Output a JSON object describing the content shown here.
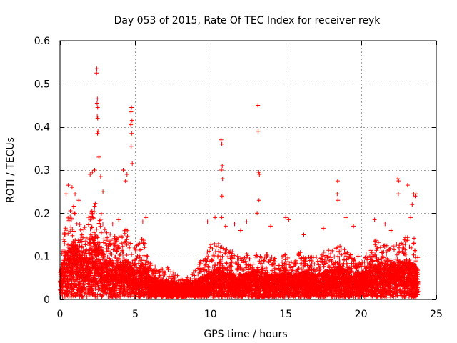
{
  "chart_data": {
    "type": "scatter",
    "title": "Day 053 of 2015, Rate Of TEC Index for receiver reyk",
    "xlabel": "GPS time / hours",
    "ylabel": "ROTI / TECUs",
    "xlim": [
      0,
      25
    ],
    "ylim": [
      0,
      0.6
    ],
    "x_ticks": [
      0,
      5,
      10,
      15,
      20,
      25
    ],
    "y_ticks": [
      0,
      0.1,
      0.2,
      0.3,
      0.4,
      0.5,
      0.6
    ],
    "x_tick_labels": [
      "0",
      "5",
      "10",
      "15",
      "20",
      "25"
    ],
    "y_tick_labels": [
      "0",
      "0.1",
      "0.2",
      "0.3",
      "0.4",
      "0.5",
      "0.6"
    ],
    "grid": true,
    "marker": "+",
    "marker_color": "#ff0000",
    "series": [
      {
        "name": "ROTI",
        "points": [
          [
            2.45,
            0.535
          ],
          [
            2.43,
            0.525
          ],
          [
            2.48,
            0.465
          ],
          [
            2.46,
            0.455
          ],
          [
            2.5,
            0.445
          ],
          [
            2.47,
            0.425
          ],
          [
            2.5,
            0.42
          ],
          [
            2.52,
            0.39
          ],
          [
            2.49,
            0.385
          ],
          [
            2.58,
            0.33
          ],
          [
            4.75,
            0.445
          ],
          [
            4.72,
            0.435
          ],
          [
            4.78,
            0.415
          ],
          [
            4.7,
            0.405
          ],
          [
            4.76,
            0.385
          ],
          [
            4.73,
            0.355
          ],
          [
            4.8,
            0.315
          ],
          [
            4.2,
            0.3
          ],
          [
            4.45,
            0.29
          ],
          [
            4.35,
            0.275
          ],
          [
            10.7,
            0.37
          ],
          [
            10.75,
            0.36
          ],
          [
            10.78,
            0.31
          ],
          [
            10.72,
            0.3
          ],
          [
            10.8,
            0.28
          ],
          [
            10.76,
            0.24
          ],
          [
            10.74,
            0.19
          ],
          [
            13.15,
            0.45
          ],
          [
            13.17,
            0.39
          ],
          [
            13.2,
            0.295
          ],
          [
            13.25,
            0.29
          ],
          [
            13.22,
            0.23
          ],
          [
            13.1,
            0.2
          ],
          [
            18.45,
            0.275
          ],
          [
            18.42,
            0.245
          ],
          [
            18.47,
            0.23
          ],
          [
            22.45,
            0.28
          ],
          [
            22.5,
            0.275
          ],
          [
            22.48,
            0.245
          ],
          [
            23.1,
            0.265
          ],
          [
            23.5,
            0.245
          ],
          [
            23.6,
            0.24
          ],
          [
            23.65,
            0.245
          ],
          [
            23.4,
            0.22
          ],
          [
            23.3,
            0.19
          ],
          [
            0.55,
            0.265
          ],
          [
            0.8,
            0.26
          ],
          [
            1.0,
            0.245
          ],
          [
            1.25,
            0.23
          ],
          [
            0.4,
            0.245
          ],
          [
            2.0,
            0.29
          ],
          [
            2.15,
            0.295
          ],
          [
            2.3,
            0.3
          ],
          [
            2.7,
            0.285
          ],
          [
            2.85,
            0.25
          ],
          [
            5.5,
            0.18
          ],
          [
            5.7,
            0.19
          ],
          [
            9.8,
            0.18
          ],
          [
            10.3,
            0.19
          ],
          [
            11.0,
            0.17
          ],
          [
            11.6,
            0.175
          ],
          [
            12.4,
            0.18
          ],
          [
            14.0,
            0.17
          ],
          [
            15.0,
            0.19
          ],
          [
            15.2,
            0.185
          ],
          [
            16.2,
            0.15
          ],
          [
            17.5,
            0.165
          ],
          [
            19.0,
            0.19
          ],
          [
            19.5,
            0.17
          ],
          [
            20.9,
            0.185
          ],
          [
            21.6,
            0.175
          ],
          [
            22.0,
            0.16
          ],
          [
            12.0,
            0.16
          ],
          [
            3.5,
            0.175
          ],
          [
            3.9,
            0.185
          ],
          [
            0.05,
            0.02
          ],
          [
            0.25,
            0.015
          ],
          [
            0.5,
            0.02
          ],
          [
            7.5,
            0.008
          ],
          [
            9.0,
            0.006
          ],
          [
            14.5,
            0.01
          ],
          [
            17.0,
            0.012
          ],
          [
            20.0,
            0.01
          ],
          [
            23.0,
            0.01
          ],
          [
            6.5,
            0.02
          ],
          [
            8.2,
            0.04
          ],
          [
            8.7,
            0.03
          ],
          [
            9.4,
            0.05
          ],
          [
            11.3,
            0.05
          ],
          [
            16.8,
            0.04
          ]
        ]
      }
    ],
    "band": {
      "x_start": 0.0,
      "x_end": 23.8,
      "samples_per_hour": 340,
      "profile": [
        [
          0.0,
          0.045,
          0.1
        ],
        [
          0.5,
          0.09,
          0.2
        ],
        [
          1.0,
          0.1,
          0.22
        ],
        [
          1.5,
          0.07,
          0.16
        ],
        [
          2.0,
          0.1,
          0.2
        ],
        [
          2.5,
          0.11,
          0.24
        ],
        [
          3.0,
          0.07,
          0.16
        ],
        [
          3.5,
          0.065,
          0.15
        ],
        [
          4.0,
          0.06,
          0.15
        ],
        [
          4.5,
          0.07,
          0.17
        ],
        [
          5.0,
          0.045,
          0.12
        ],
        [
          5.5,
          0.06,
          0.15
        ],
        [
          6.0,
          0.035,
          0.09
        ],
        [
          6.5,
          0.028,
          0.07
        ],
        [
          7.0,
          0.028,
          0.075
        ],
        [
          7.5,
          0.026,
          0.07
        ],
        [
          8.0,
          0.024,
          0.05
        ],
        [
          8.5,
          0.025,
          0.055
        ],
        [
          9.0,
          0.03,
          0.07
        ],
        [
          9.5,
          0.035,
          0.1
        ],
        [
          10.0,
          0.045,
          0.13
        ],
        [
          10.5,
          0.05,
          0.13
        ],
        [
          11.0,
          0.045,
          0.12
        ],
        [
          11.5,
          0.04,
          0.11
        ],
        [
          12.0,
          0.04,
          0.1
        ],
        [
          12.5,
          0.045,
          0.11
        ],
        [
          13.0,
          0.05,
          0.12
        ],
        [
          13.5,
          0.045,
          0.11
        ],
        [
          14.0,
          0.04,
          0.1
        ],
        [
          14.5,
          0.04,
          0.1
        ],
        [
          15.0,
          0.045,
          0.11
        ],
        [
          15.5,
          0.04,
          0.1
        ],
        [
          16.0,
          0.045,
          0.11
        ],
        [
          16.5,
          0.045,
          0.1
        ],
        [
          17.0,
          0.04,
          0.1
        ],
        [
          17.5,
          0.045,
          0.11
        ],
        [
          18.0,
          0.05,
          0.12
        ],
        [
          18.5,
          0.055,
          0.13
        ],
        [
          19.0,
          0.05,
          0.12
        ],
        [
          19.5,
          0.045,
          0.11
        ],
        [
          20.0,
          0.045,
          0.1
        ],
        [
          20.5,
          0.05,
          0.11
        ],
        [
          21.0,
          0.06,
          0.14
        ],
        [
          21.5,
          0.06,
          0.13
        ],
        [
          22.0,
          0.06,
          0.12
        ],
        [
          22.5,
          0.065,
          0.14
        ],
        [
          23.0,
          0.065,
          0.15
        ],
        [
          23.5,
          0.06,
          0.15
        ],
        [
          23.8,
          0.05,
          0.12
        ]
      ]
    }
  }
}
